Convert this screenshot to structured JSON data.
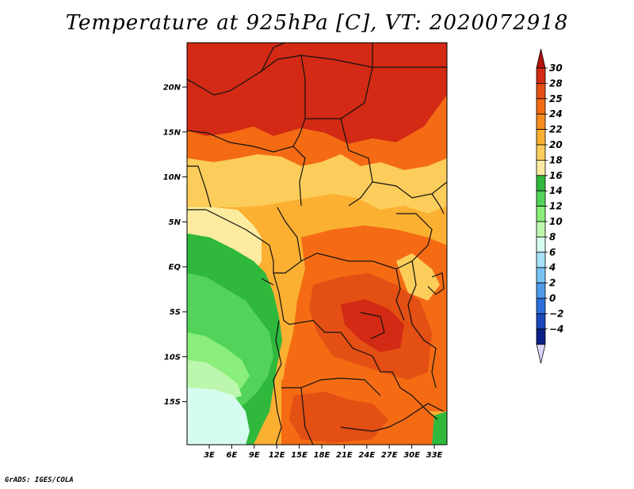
{
  "title": "Temperature at 925hPa [C], VT: 2020072918",
  "credit": "GrADS: IGES/COLA",
  "map": {
    "lat_ticks": [
      "20N",
      "15N",
      "10N",
      "5N",
      "EQ",
      "5S",
      "10S",
      "15S"
    ],
    "lon_ticks": [
      "3E",
      "6E",
      "9E",
      "12E",
      "15E",
      "18E",
      "21E",
      "24E",
      "27E",
      "30E",
      "33E"
    ]
  },
  "colorbar": {
    "labels": [
      "30",
      "28",
      "25",
      "24",
      "22",
      "20",
      "18",
      "16",
      "14",
      "12",
      "10",
      "8",
      "6",
      "4",
      "2",
      "0",
      "−2",
      "−4"
    ],
    "colors": [
      "#d22a14",
      "#e44f14",
      "#f46b14",
      "#f88d1e",
      "#fbb032",
      "#fccd5a",
      "#fdeca0",
      "#2fb83c",
      "#53d35a",
      "#89ee7a",
      "#bdf7ad",
      "#d6fcef",
      "#a6e2fa",
      "#78c2f4",
      "#4e9ae8",
      "#2d6ddc",
      "#1a47bb",
      "#0b1e86"
    ],
    "top_arrow_color": "#b6120e",
    "bottom_arrow_color": "#dcd6fc"
  }
}
